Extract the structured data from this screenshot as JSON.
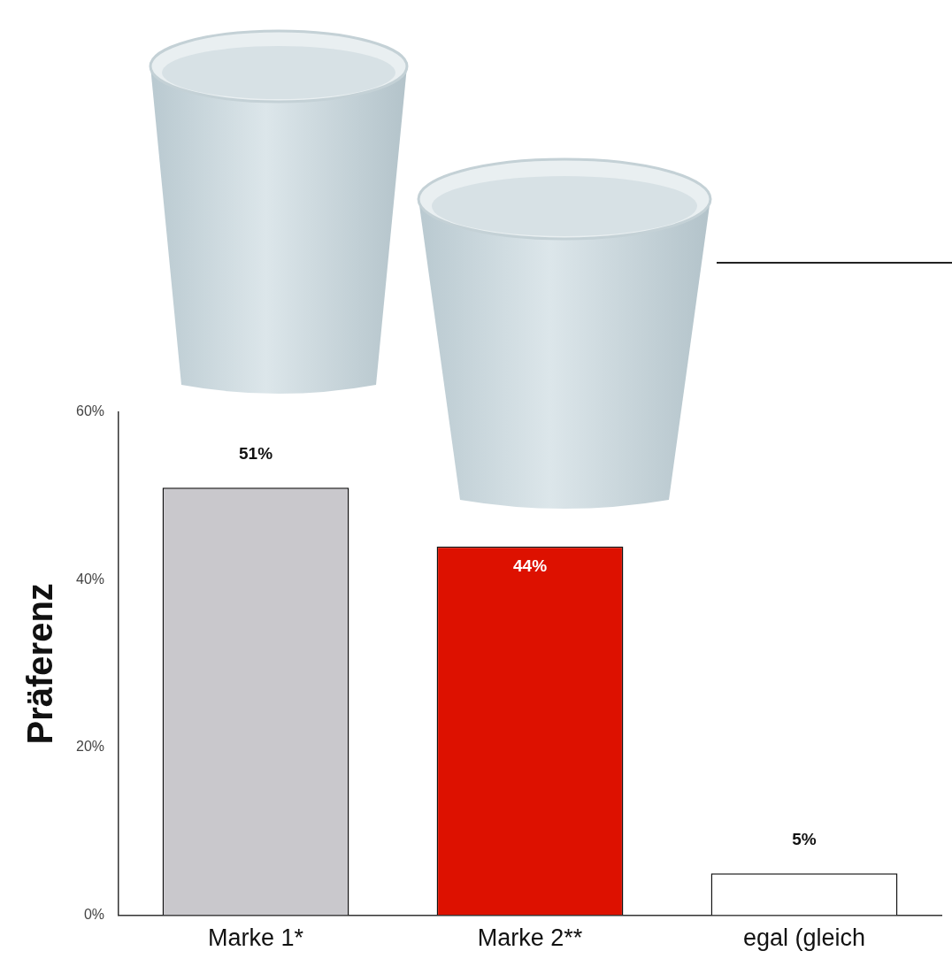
{
  "chart_data": {
    "type": "bar",
    "ylabel": "Präferenz",
    "categories": [
      "Marke 1*",
      "Marke 2**",
      "egal (gleich"
    ],
    "values": [
      51,
      44,
      5
    ],
    "value_labels": [
      "51%",
      "44%",
      "5%"
    ],
    "colors": [
      "#c9c8cc",
      "#dd1100",
      "#ffffff"
    ],
    "data_labels": true,
    "ylim": [
      0,
      60
    ],
    "yticks": [
      {
        "value": 0,
        "label": "0%"
      },
      {
        "value": 20,
        "label": "20%"
      },
      {
        "value": 40,
        "label": "40%"
      },
      {
        "value": 60,
        "label": "60%"
      }
    ],
    "grid": false
  }
}
